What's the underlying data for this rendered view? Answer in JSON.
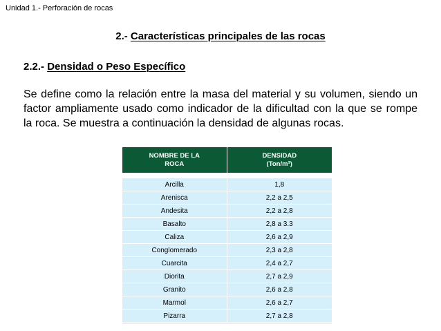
{
  "header": {
    "unit_title": "Unidad 1.- Perforación de rocas"
  },
  "section": {
    "number": "2.- ",
    "title": "Características principales de las rocas"
  },
  "subsection": {
    "number": "2.2.- ",
    "title": "Densidad o Peso Específico"
  },
  "body": {
    "paragraph": "Se define como la relación entre la masa del material y su volumen, siendo un factor ampliamente usado como indicador de la dificultad con la que se rompe la roca.  Se muestra a continuación la densidad de algunas rocas."
  },
  "table": {
    "header_color": "#0b5a35",
    "row_color": "#d6f0fb",
    "columns": {
      "name_line1": "NOMBRE DE LA",
      "name_line2": "ROCA",
      "density_line1": "DENSIDAD",
      "density_line2": "(Ton/m³)"
    },
    "rows": [
      {
        "name": "Arcilla",
        "density": "1,8"
      },
      {
        "name": "Arenisca",
        "density": "2,2 a 2,5"
      },
      {
        "name": "Andesita",
        "density": "2,2 a 2,8"
      },
      {
        "name": "Basalto",
        "density": "2,8 a 3.3"
      },
      {
        "name": "Caliza",
        "density": "2,6 a 2,9"
      },
      {
        "name": "Conglomerado",
        "density": "2,3 a 2,8"
      },
      {
        "name": "Cuarcita",
        "density": "2,4 a 2,7"
      },
      {
        "name": "Diorita",
        "density": "2,7 a 2,9"
      },
      {
        "name": "Granito",
        "density": "2,6 a 2,8"
      },
      {
        "name": "Marmol",
        "density": "2,6 a 2,7"
      },
      {
        "name": "Pizarra",
        "density": "2,7 a  2,8"
      }
    ]
  }
}
